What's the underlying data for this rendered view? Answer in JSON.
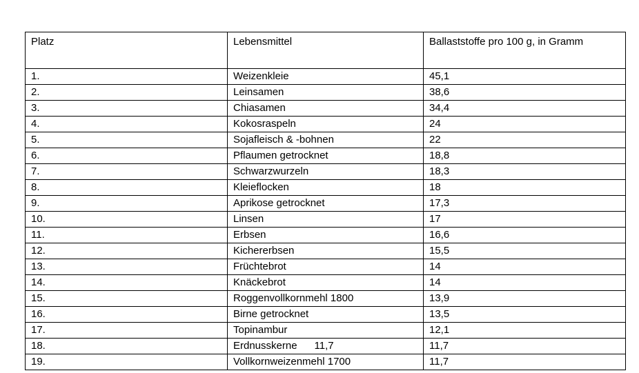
{
  "table": {
    "columns": [
      {
        "key": "platz",
        "label": "Platz"
      },
      {
        "key": "lebensmittel",
        "label": "Lebensmittel"
      },
      {
        "key": "ballaststoffe",
        "label": "Ballaststoffe pro 100 g, in Gramm"
      }
    ],
    "rows": [
      {
        "platz": "1.",
        "lebensmittel": "Weizenkleie",
        "ballaststoffe": "45,1"
      },
      {
        "platz": "2.",
        "lebensmittel": "Leinsamen",
        "ballaststoffe": "38,6"
      },
      {
        "platz": "3.",
        "lebensmittel": "Chiasamen",
        "ballaststoffe": "34,4"
      },
      {
        "platz": "4.",
        "lebensmittel": "Kokosraspeln",
        "ballaststoffe": "24"
      },
      {
        "platz": "5.",
        "lebensmittel": "Sojafleisch & -bohnen",
        "ballaststoffe": "22"
      },
      {
        "platz": "6.",
        "lebensmittel": "Pflaumen getrocknet",
        "ballaststoffe": "18,8"
      },
      {
        "platz": "7.",
        "lebensmittel": "Schwarzwurzeln",
        "ballaststoffe": "18,3"
      },
      {
        "platz": "8.",
        "lebensmittel": "Kleieflocken",
        "ballaststoffe": "18"
      },
      {
        "platz": "9.",
        "lebensmittel": "Aprikose getrocknet",
        "ballaststoffe": "17,3"
      },
      {
        "platz": "10.",
        "lebensmittel": "Linsen",
        "ballaststoffe": "17"
      },
      {
        "platz": "11.",
        "lebensmittel": "Erbsen",
        "ballaststoffe": "16,6"
      },
      {
        "platz": "12.",
        "lebensmittel": "Kichererbsen",
        "ballaststoffe": "15,5"
      },
      {
        "platz": "13.",
        "lebensmittel": "Früchtebrot",
        "ballaststoffe": "14"
      },
      {
        "platz": "14.",
        "lebensmittel": "Knäckebrot",
        "ballaststoffe": "14"
      },
      {
        "platz": "15.",
        "lebensmittel": "Roggenvollkornmehl 1800",
        "ballaststoffe": "13,9"
      },
      {
        "platz": "16.",
        "lebensmittel": "Birne getrocknet",
        "ballaststoffe": "13,5"
      },
      {
        "platz": "17.",
        "lebensmittel": "Topinambur",
        "ballaststoffe": "12,1"
      },
      {
        "platz": "18.",
        "lebensmittel": "Erdnusskerne      11,7",
        "ballaststoffe": "11,7"
      },
      {
        "platz": "19.",
        "lebensmittel": "Vollkornweizenmehl 1700",
        "ballaststoffe": "11,7"
      }
    ]
  }
}
